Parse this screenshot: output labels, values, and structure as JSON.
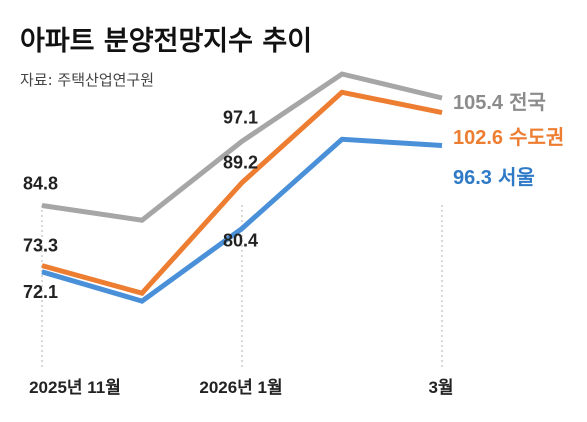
{
  "title": "아파트 분양전망지수 추이",
  "source": "자료: 주택산업연구원",
  "chart_data": {
    "type": "line",
    "x": [
      "2025-11",
      "2025-12",
      "2026-01",
      "2026-02",
      "2026-03"
    ],
    "tick_labels": [
      "2025년 11월",
      "2026년 1월",
      "3월"
    ],
    "tick_index": [
      0,
      2,
      4
    ],
    "series": [
      {
        "name": "전국",
        "color": "#a6a6a6",
        "label_color": "#8c8c8c",
        "values": [
          84.8,
          82.0,
          97.1,
          110.0,
          105.4
        ],
        "labels": [
          "84.8",
          null,
          "97.1",
          null,
          "105.4"
        ]
      },
      {
        "name": "수도권",
        "color": "#ed7d31",
        "label_color": "#ed7d31",
        "values": [
          73.3,
          68.0,
          89.2,
          106.5,
          102.6
        ],
        "labels": [
          "73.3",
          null,
          "89.2",
          null,
          "102.6"
        ]
      },
      {
        "name": "서울",
        "color": "#4a90d9",
        "label_color": "#2f7ac7",
        "values": [
          72.1,
          66.5,
          80.4,
          97.5,
          96.3
        ],
        "labels": [
          "72.1",
          null,
          "80.4",
          null,
          "96.3"
        ]
      }
    ],
    "xlabel": "",
    "ylabel": "",
    "grid": false,
    "legend": "inline-right"
  }
}
